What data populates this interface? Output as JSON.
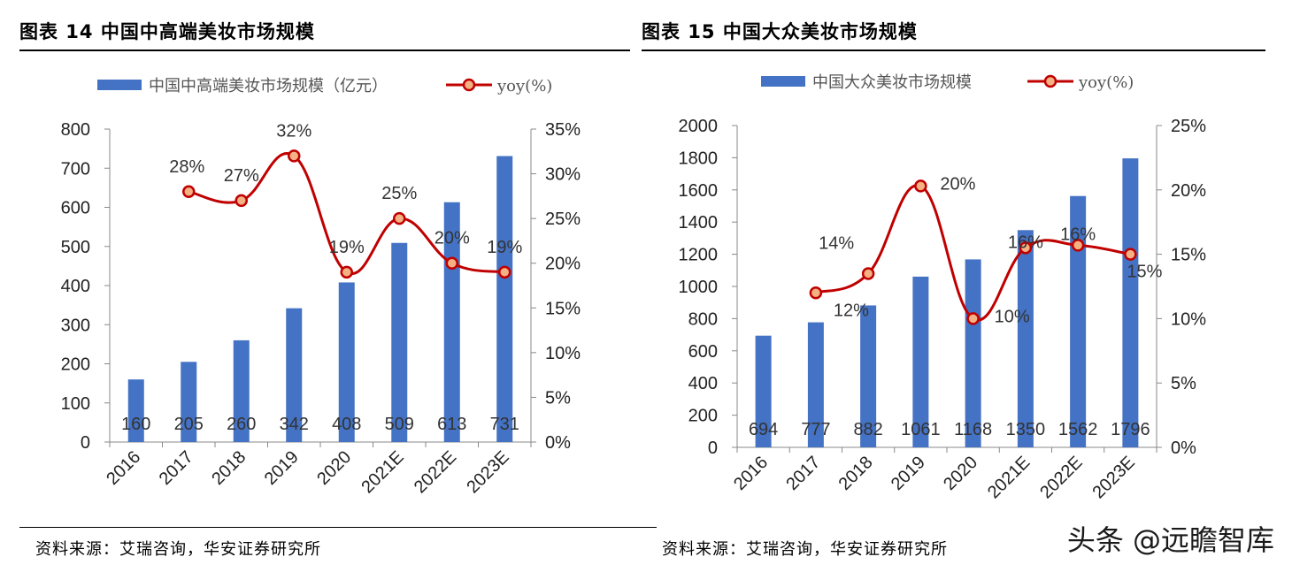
{
  "panels": [
    {
      "title": "图表 14 中国中高端美妆市场规模",
      "source": "资料来源：艾瑞咨询，华安证券研究所"
    },
    {
      "title": "图表 15 中国大众美妆市场规模",
      "source": "资料来源：艾瑞咨询，华安证券研究所"
    }
  ],
  "watermark": "头条 @远瞻智库",
  "chart_data": [
    {
      "type": "bar+line",
      "categories": [
        "2016",
        "2017",
        "2018",
        "2019",
        "2020",
        "2021E",
        "2022E",
        "2023E"
      ],
      "series": [
        {
          "name": "中国中高端美妆市场规模（亿元）",
          "type": "bar",
          "axis": "left",
          "values": [
            160,
            205,
            260,
            342,
            408,
            509,
            613,
            731
          ],
          "color": "#4472C4"
        },
        {
          "name": "yoy(%)",
          "type": "line",
          "axis": "right",
          "values": [
            null,
            28,
            27,
            32,
            19,
            25,
            20,
            19
          ],
          "labels": [
            "",
            "28%",
            "27%",
            "32%",
            "19%",
            "25%",
            "20%",
            "19%"
          ],
          "color": "#C00000",
          "marker_fill": "#F4B183"
        }
      ],
      "yleft": {
        "min": 0,
        "max": 800,
        "step": 100,
        "ticks": [
          "0",
          "100",
          "200",
          "300",
          "400",
          "500",
          "600",
          "700",
          "800"
        ]
      },
      "yright": {
        "min": 0,
        "max": 35,
        "step": 5,
        "ticks": [
          "0%",
          "5%",
          "10%",
          "15%",
          "20%",
          "25%",
          "30%",
          "35%"
        ]
      },
      "legend": "top",
      "grid": false
    },
    {
      "type": "bar+line",
      "categories": [
        "2016",
        "2017",
        "2018",
        "2019",
        "2020",
        "2021E",
        "2022E",
        "2023E"
      ],
      "series": [
        {
          "name": "中国大众美妆市场规模",
          "type": "bar",
          "axis": "left",
          "values": [
            694,
            777,
            882,
            1061,
            1168,
            1350,
            1562,
            1796
          ],
          "color": "#4472C4"
        },
        {
          "name": "yoy(%)",
          "type": "line",
          "axis": "right",
          "values": [
            null,
            12,
            13.5,
            20.3,
            10,
            15.5,
            15.7,
            15
          ],
          "labels": [
            "",
            "12%",
            "14%",
            "20%",
            "10%",
            "16%",
            "16%",
            "15%"
          ],
          "color": "#C00000",
          "marker_fill": "#F4B183"
        }
      ],
      "yleft": {
        "min": 0,
        "max": 2000,
        "step": 200,
        "ticks": [
          "0",
          "200",
          "400",
          "600",
          "800",
          "1000",
          "1200",
          "1400",
          "1600",
          "1800",
          "2000"
        ]
      },
      "yright": {
        "min": 0,
        "max": 25,
        "step": 5,
        "ticks": [
          "0%",
          "5%",
          "10%",
          "15%",
          "20%",
          "25%"
        ]
      },
      "legend": "top",
      "grid": false
    }
  ]
}
